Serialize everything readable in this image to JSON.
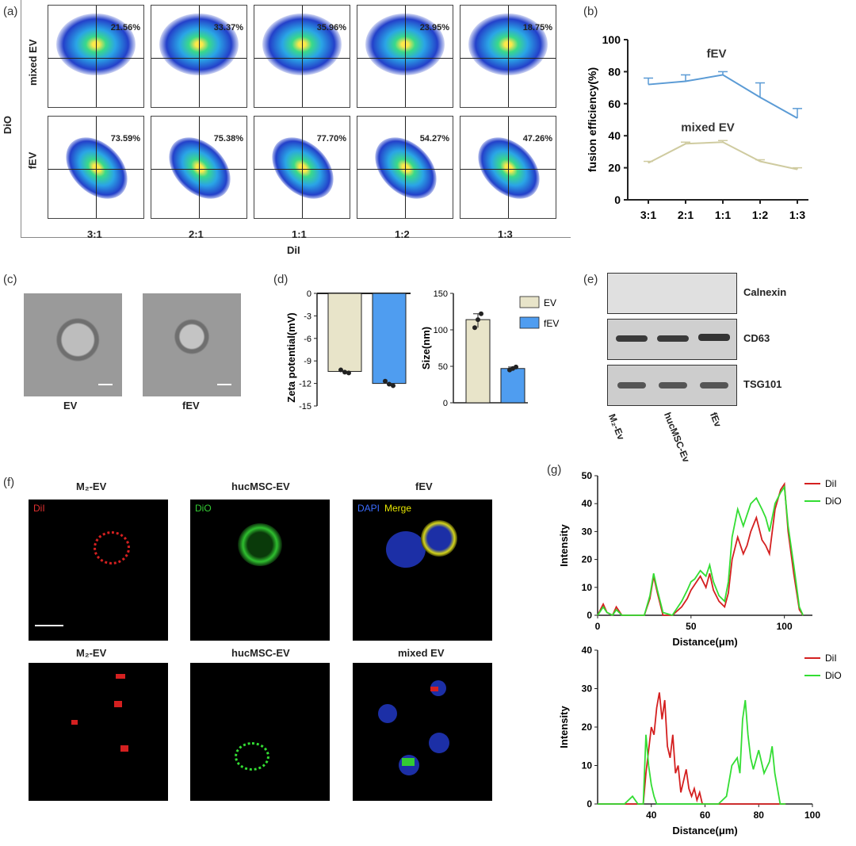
{
  "panels": {
    "a": "(a)",
    "b": "(b)",
    "c": "(c)",
    "d": "(d)",
    "e": "(e)",
    "f": "(f)",
    "g": "(g)"
  },
  "flow": {
    "row_labels": [
      "mixed EV",
      "fEV"
    ],
    "y_axis": "DiO",
    "x_axis": "DiI",
    "ratios": [
      "3:1",
      "2:1",
      "1:1",
      "1:2",
      "1:3"
    ],
    "mixed_pct": [
      "21.56%",
      "33.37%",
      "35.96%",
      "23.95%",
      "18.75%"
    ],
    "fev_pct": [
      "73.59%",
      "75.38%",
      "77.70%",
      "54.27%",
      "47.26%"
    ]
  },
  "tem": {
    "labels": [
      "EV",
      "fEV"
    ]
  },
  "blot": {
    "bands": [
      "Calnexin",
      "CD63",
      "TSG101"
    ],
    "lanes": [
      "M₂-Ev",
      "hucMSC-Ev",
      "fEv"
    ]
  },
  "confocal": {
    "col_titles": [
      "M₂-EV",
      "hucMSC-EV",
      "fEV"
    ],
    "row2_titles": [
      "M₂-EV",
      "hucMSC-EV",
      "mixed EV"
    ],
    "tags": {
      "dii": "DiI",
      "dio": "DiO",
      "dapi": "DAPI",
      "merge": "Merge"
    }
  },
  "colors": {
    "dii": "#d42020",
    "dio": "#33dd33",
    "fev_line": "#5b9bd5",
    "mixed_line": "#cfcba0",
    "ev_bar": "#e8e4c9",
    "fev_bar": "#4f9df0"
  },
  "chart_data": [
    {
      "id": "b",
      "type": "line",
      "categories": [
        "3:1",
        "2:1",
        "1:1",
        "1:2",
        "1:3"
      ],
      "ylabel": "fusion efficiency(%)",
      "ylim": [
        0,
        100
      ],
      "yticks": [
        0,
        20,
        40,
        60,
        80,
        100
      ],
      "series": [
        {
          "name": "fEV",
          "values": [
            72,
            74,
            78,
            64,
            51
          ],
          "err": [
            4,
            4,
            2,
            9,
            6
          ]
        },
        {
          "name": "mixed EV",
          "values": [
            23,
            35,
            36,
            24,
            19
          ],
          "err": [
            1,
            1,
            1,
            1,
            1
          ]
        }
      ]
    },
    {
      "id": "d1",
      "type": "bar",
      "categories": [
        "EV",
        "fEV"
      ],
      "ylabel": "Zeta potential(mV)",
      "ylim": [
        -15,
        0
      ],
      "yticks": [
        0,
        -3,
        -6,
        -9,
        -12,
        -15
      ],
      "values": [
        -10.4,
        -12.0
      ],
      "points": [
        [
          -10.2,
          -10.5,
          -10.6
        ],
        [
          -11.7,
          -12.1,
          -12.3
        ]
      ]
    },
    {
      "id": "d2",
      "type": "bar",
      "categories": [
        "EV",
        "fEV"
      ],
      "ylabel": "Size(nm)",
      "ylim": [
        0,
        150
      ],
      "yticks": [
        0,
        50,
        100,
        150
      ],
      "values": [
        114,
        47
      ],
      "points": [
        [
          103,
          114,
          122
        ],
        [
          45,
          47,
          49
        ]
      ],
      "legend": [
        "EV",
        "fEV"
      ]
    },
    {
      "id": "g1",
      "type": "line",
      "xlabel": "Distance(μm)",
      "ylabel": "Intensity",
      "xlim": [
        0,
        115
      ],
      "ylim": [
        0,
        50
      ],
      "xticks": [
        0,
        50,
        100
      ],
      "yticks": [
        0,
        10,
        20,
        30,
        40,
        50
      ],
      "series": [
        {
          "name": "DiI",
          "x": [
            0,
            3,
            5,
            8,
            10,
            13,
            15,
            20,
            25,
            28,
            30,
            32,
            35,
            40,
            45,
            48,
            50,
            52,
            55,
            58,
            60,
            62,
            65,
            68,
            70,
            72,
            75,
            78,
            80,
            82,
            85,
            88,
            90,
            92,
            95,
            98,
            100,
            102,
            105,
            108,
            110
          ],
          "y": [
            0,
            4,
            1,
            0,
            3,
            0,
            0,
            0,
            0,
            6,
            14,
            8,
            0,
            0,
            3,
            6,
            9,
            11,
            14,
            10,
            15,
            9,
            5,
            3,
            8,
            20,
            28,
            22,
            25,
            30,
            35,
            27,
            25,
            22,
            38,
            45,
            47,
            30,
            15,
            2,
            0
          ]
        },
        {
          "name": "DiO",
          "x": [
            0,
            3,
            5,
            8,
            10,
            13,
            15,
            20,
            25,
            28,
            30,
            32,
            35,
            40,
            45,
            48,
            50,
            52,
            55,
            58,
            60,
            62,
            65,
            68,
            70,
            72,
            75,
            78,
            80,
            82,
            85,
            88,
            90,
            92,
            95,
            98,
            100,
            102,
            105,
            108,
            110
          ],
          "y": [
            0,
            3,
            1,
            0,
            2,
            0,
            0,
            0,
            0,
            7,
            15,
            9,
            1,
            0,
            5,
            9,
            12,
            13,
            16,
            14,
            18,
            12,
            7,
            5,
            12,
            28,
            38,
            32,
            36,
            40,
            42,
            38,
            35,
            30,
            40,
            44,
            46,
            32,
            18,
            3,
            0
          ]
        }
      ]
    },
    {
      "id": "g2",
      "type": "line",
      "xlabel": "Distance(μm)",
      "ylabel": "Intensity",
      "xlim": [
        20,
        100
      ],
      "ylim": [
        0,
        40
      ],
      "xticks": [
        40,
        60,
        80,
        100
      ],
      "yticks": [
        0,
        10,
        20,
        30,
        40
      ],
      "series": [
        {
          "name": "DiI",
          "x": [
            20,
            30,
            35,
            37,
            38,
            39,
            40,
            41,
            42,
            43,
            44,
            45,
            46,
            47,
            48,
            49,
            50,
            51,
            52,
            53,
            54,
            55,
            56,
            57,
            58,
            59,
            60,
            62,
            70,
            80,
            90
          ],
          "y": [
            0,
            0,
            0,
            0,
            8,
            14,
            20,
            18,
            25,
            29,
            22,
            27,
            15,
            12,
            18,
            8,
            10,
            3,
            6,
            9,
            4,
            2,
            4,
            1,
            3,
            0,
            0,
            0,
            0,
            0,
            0
          ]
        },
        {
          "name": "DiO",
          "x": [
            20,
            30,
            33,
            35,
            37,
            38,
            39,
            40,
            41,
            42,
            44,
            46,
            60,
            65,
            68,
            70,
            72,
            73,
            74,
            75,
            76,
            77,
            78,
            80,
            82,
            84,
            85,
            86,
            87,
            88,
            90
          ],
          "y": [
            0,
            0,
            2,
            0,
            0,
            18,
            10,
            5,
            2,
            0,
            0,
            0,
            0,
            0,
            2,
            10,
            12,
            8,
            22,
            27,
            18,
            12,
            9,
            14,
            8,
            11,
            15,
            8,
            4,
            0,
            0
          ]
        }
      ]
    }
  ]
}
